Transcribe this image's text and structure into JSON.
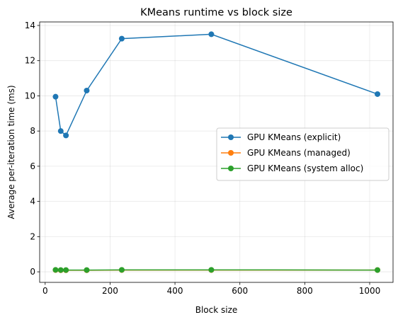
{
  "chart_data": {
    "type": "line",
    "title": "KMeans runtime vs block size",
    "xlabel": "Block size",
    "ylabel": "Average per-iteration time (ms)",
    "xlim": [
      -17,
      1072
    ],
    "ylim": [
      -0.6,
      14.2
    ],
    "xticks": [
      0,
      200,
      400,
      600,
      800,
      1000
    ],
    "yticks": [
      0,
      2,
      4,
      6,
      8,
      10,
      12,
      14
    ],
    "grid": true,
    "legend_position": "center-right",
    "x": [
      32,
      48,
      64,
      128,
      236,
      512,
      1024
    ],
    "series": [
      {
        "name": "GPU KMeans (explicit)",
        "color": "#1f77b4",
        "values": [
          9.95,
          8.0,
          7.75,
          10.3,
          13.25,
          13.5,
          10.1
        ]
      },
      {
        "name": "GPU KMeans (managed)",
        "color": "#ff7f0e",
        "values": [
          0.1,
          0.09,
          0.09,
          0.09,
          0.1,
          0.1,
          0.1
        ]
      },
      {
        "name": "GPU KMeans (system alloc)",
        "color": "#2ca02c",
        "values": [
          0.11,
          0.1,
          0.1,
          0.1,
          0.11,
          0.11,
          0.1
        ]
      }
    ]
  }
}
